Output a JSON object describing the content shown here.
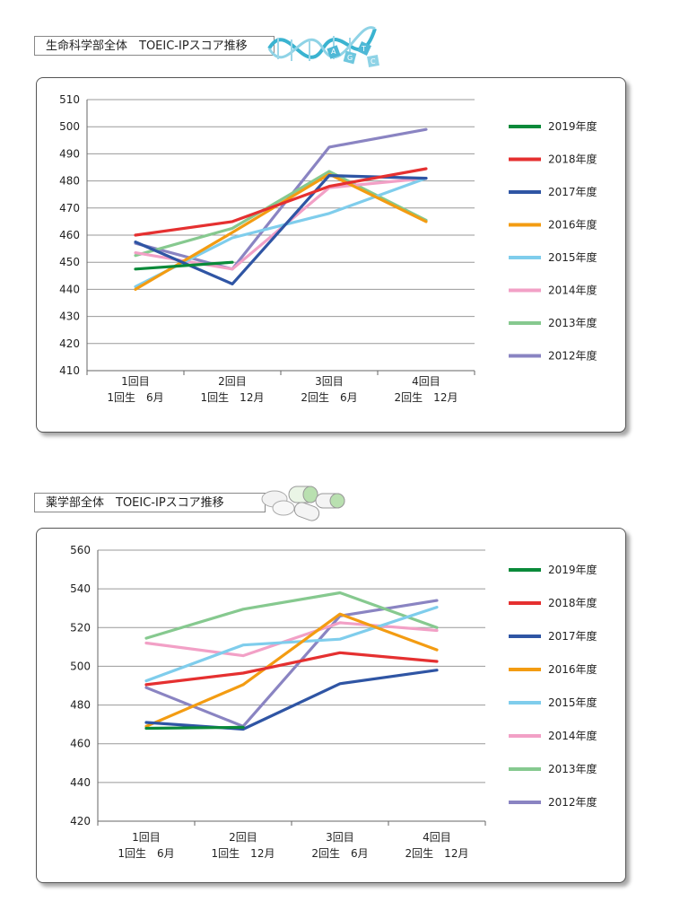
{
  "charts": [
    {
      "heading": "生命科学部全体　TOEIC-IPスコア推移",
      "decoration_letters": [
        "A",
        "G",
        "T",
        "C"
      ]
    },
    {
      "heading": "薬学部全体　TOEIC-IPスコア推移"
    }
  ],
  "chart_data": [
    {
      "type": "line",
      "title": "生命科学部全体　TOEIC-IPスコア推移",
      "categories": [
        "1回目",
        "2回目",
        "3回目",
        "4回目"
      ],
      "category_sublabels": [
        "1回生　6月",
        "1回生　12月",
        "2回生　6月",
        "2回生　12月"
      ],
      "ylim": [
        410,
        510
      ],
      "yticks": [
        410,
        420,
        430,
        440,
        450,
        460,
        470,
        480,
        490,
        500,
        510
      ],
      "grid": true,
      "legend_position": "right",
      "series": [
        {
          "name": "2019年度",
          "color": "#0a8a3a",
          "values": [
            447.5,
            450,
            null,
            null
          ]
        },
        {
          "name": "2018年度",
          "color": "#e53030",
          "values": [
            460,
            465,
            478,
            484.5
          ]
        },
        {
          "name": "2017年度",
          "color": "#2f55a4",
          "values": [
            457.5,
            442,
            482,
            481
          ]
        },
        {
          "name": "2016年度",
          "color": "#f39c12",
          "values": [
            440,
            461,
            482.5,
            465
          ]
        },
        {
          "name": "2015年度",
          "color": "#7fcdec",
          "values": [
            441,
            459,
            468,
            481
          ]
        },
        {
          "name": "2014年度",
          "color": "#f2a0c6",
          "values": [
            453.5,
            447.5,
            477.5,
            481
          ]
        },
        {
          "name": "2013年度",
          "color": "#86c98f",
          "values": [
            452.5,
            462.5,
            483.5,
            465.5
          ]
        },
        {
          "name": "2012年度",
          "color": "#8a84c2",
          "values": [
            457,
            447.5,
            492.5,
            499
          ]
        }
      ]
    },
    {
      "type": "line",
      "title": "薬学部全体　TOEIC-IPスコア推移",
      "categories": [
        "1回目",
        "2回目",
        "3回目",
        "4回目"
      ],
      "category_sublabels": [
        "1回生　6月",
        "1回生　12月",
        "2回生　6月",
        "2回生　12月"
      ],
      "ylim": [
        420,
        560
      ],
      "yticks": [
        420,
        440,
        460,
        480,
        500,
        520,
        540,
        560
      ],
      "grid": true,
      "legend_position": "right",
      "series": [
        {
          "name": "2019年度",
          "color": "#0a8a3a",
          "values": [
            468,
            468.5,
            null,
            null
          ]
        },
        {
          "name": "2018年度",
          "color": "#e53030",
          "values": [
            490.5,
            496.5,
            507,
            502.5
          ]
        },
        {
          "name": "2017年度",
          "color": "#2f55a4",
          "values": [
            471,
            467.5,
            491,
            498
          ]
        },
        {
          "name": "2016年度",
          "color": "#f39c12",
          "values": [
            469,
            490.5,
            527,
            508.5
          ]
        },
        {
          "name": "2015年度",
          "color": "#7fcdec",
          "values": [
            492.5,
            511,
            514,
            530.5
          ]
        },
        {
          "name": "2014年度",
          "color": "#f2a0c6",
          "values": [
            512,
            505.5,
            522.5,
            518.5
          ]
        },
        {
          "name": "2013年度",
          "color": "#86c98f",
          "values": [
            514.5,
            529.5,
            538,
            520
          ]
        },
        {
          "name": "2012年度",
          "color": "#8a84c2",
          "values": [
            489,
            469,
            526,
            534
          ]
        }
      ]
    }
  ]
}
